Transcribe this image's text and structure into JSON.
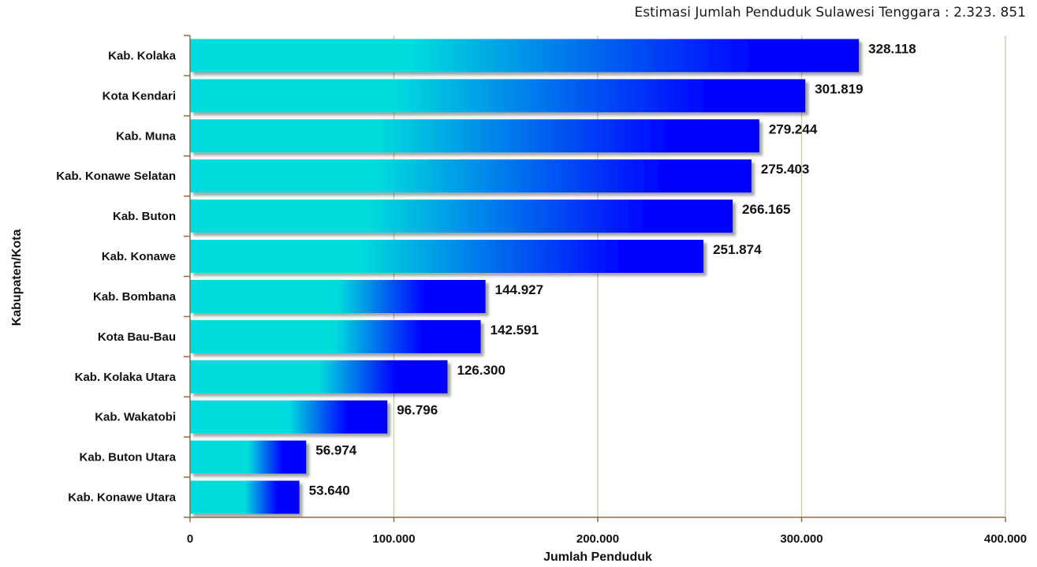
{
  "header": {
    "title": "Estimasi Jumlah Penduduk Sulawesi Tenggara : 2.323. 851"
  },
  "colors": {
    "bar_start": "#00dcdc",
    "bar_end": "#0000ff",
    "gridline": "#d9cbb2",
    "axis": "#8b6b43"
  },
  "chart_data": {
    "type": "bar",
    "orientation": "horizontal",
    "title": "Estimasi Jumlah Penduduk Sulawesi Tenggara : 2.323. 851",
    "xlabel": "Jumlah Penduduk",
    "ylabel": "Kabupaten/Kota",
    "xlim": [
      0,
      400000
    ],
    "grid": true,
    "categories": [
      "Kab. Kolaka",
      "Kota Kendari",
      "Kab. Muna",
      "Kab. Konawe Selatan",
      "Kab. Buton",
      "Kab. Konawe",
      "Kab. Bombana",
      "Kota Bau-Bau",
      "Kab. Kolaka Utara",
      "Kab. Wakatobi",
      "Kab. Buton Utara",
      "Kab. Konawe Utara"
    ],
    "values": [
      328118,
      301819,
      279244,
      275403,
      266165,
      251874,
      144927,
      142591,
      126300,
      96796,
      56974,
      53640
    ],
    "value_labels": [
      "328.118",
      "301.819",
      "279.244",
      "275.403",
      "266.165",
      "251.874",
      "144.927",
      "142.591",
      "126.300",
      "96.796",
      "56.974",
      "53.640"
    ],
    "ticks": [
      0,
      100000,
      200000,
      300000,
      400000
    ],
    "tick_labels": [
      "0",
      "100.000",
      "200.000",
      "300.000",
      "400.000"
    ]
  }
}
